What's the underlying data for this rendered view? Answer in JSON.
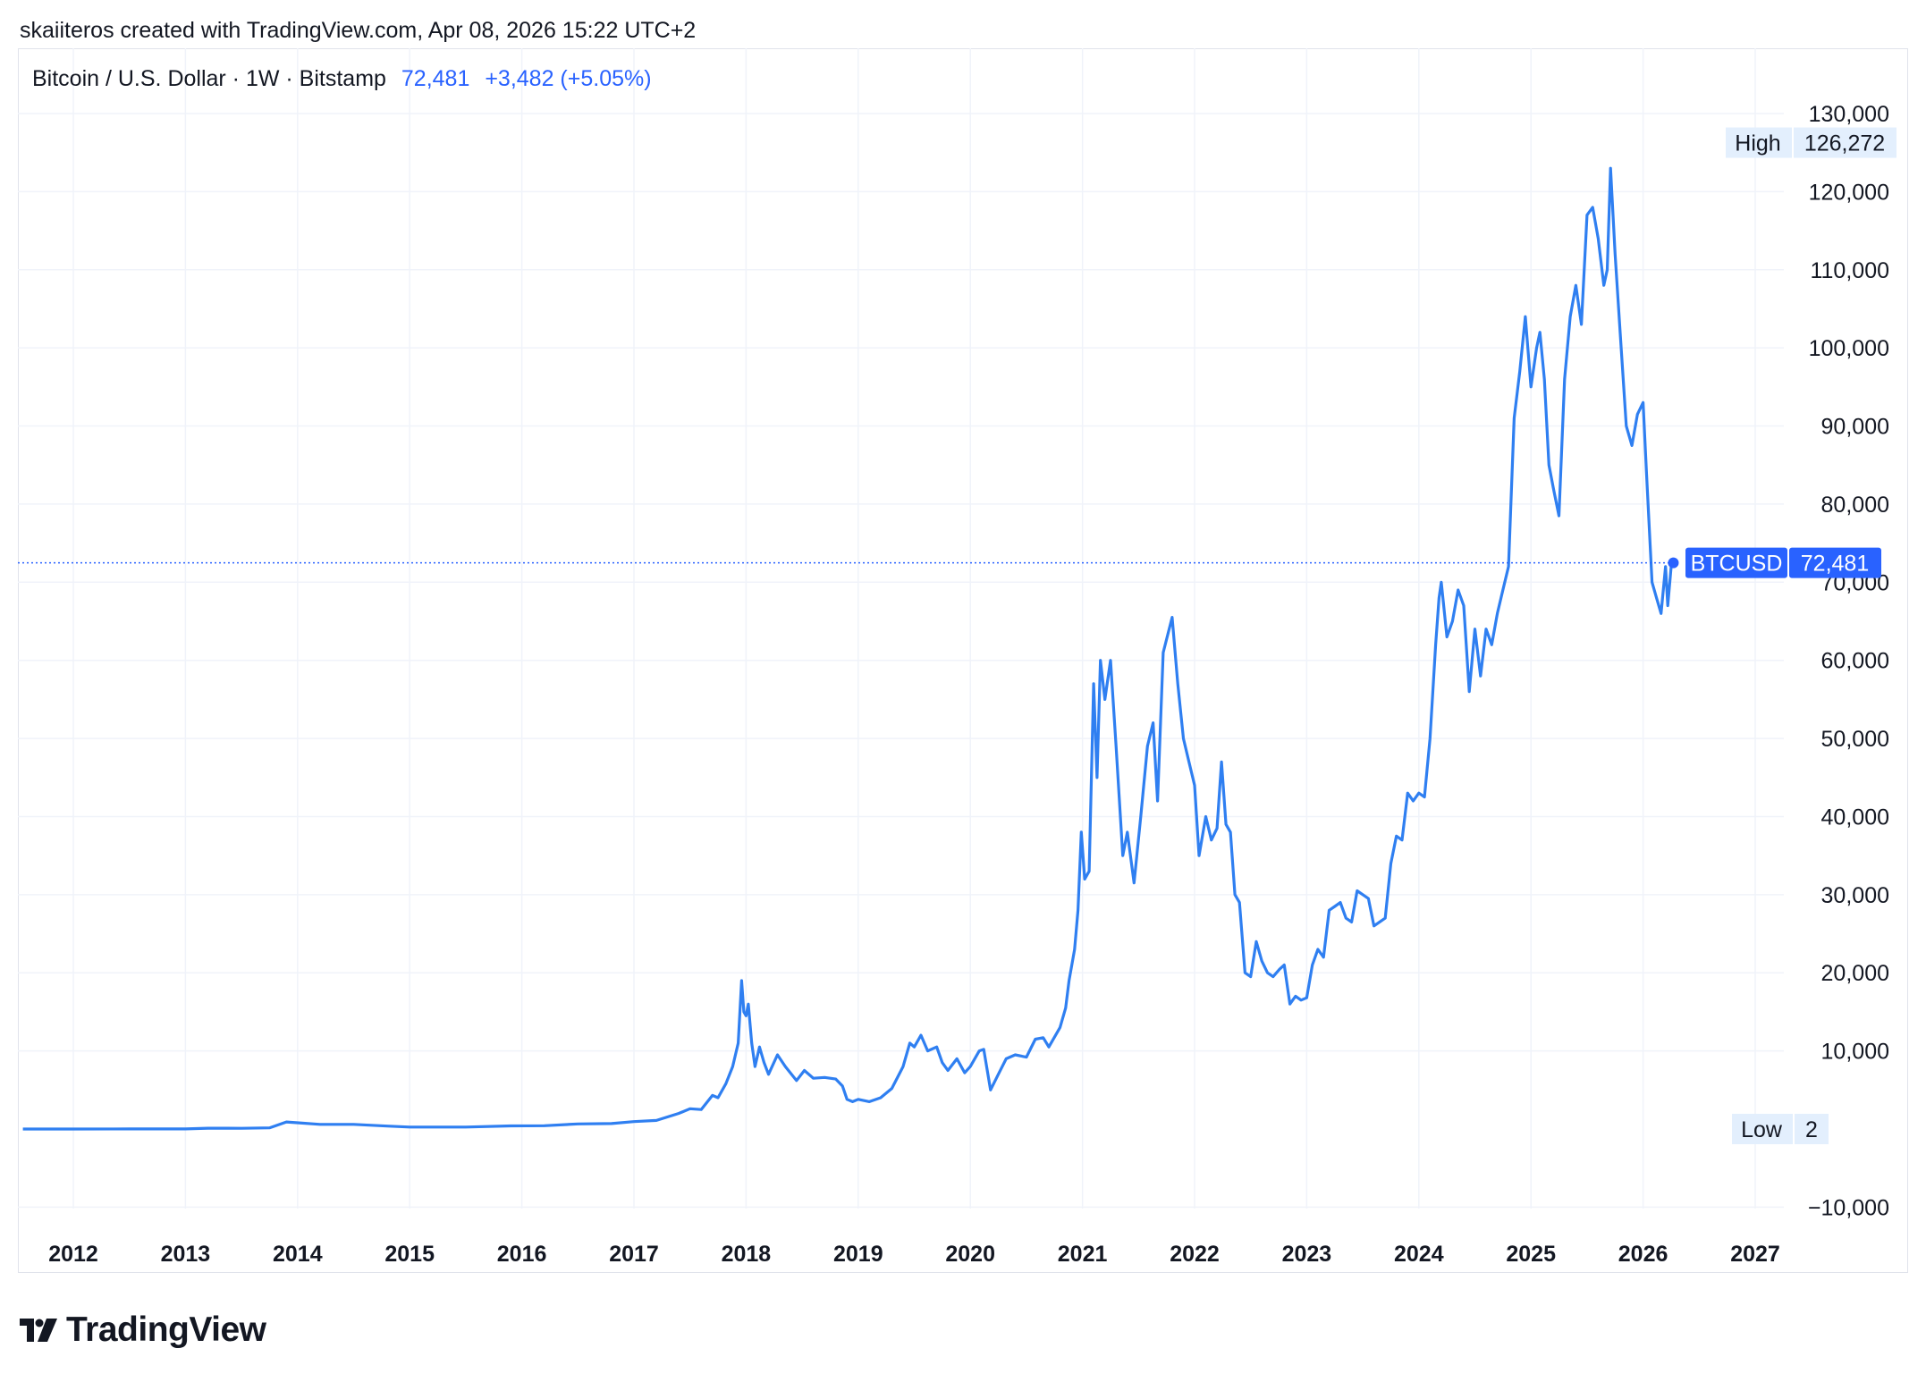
{
  "credit": "skaiiteros created with TradingView.com, Apr 08, 2026 15:22 UTC+2",
  "legend": {
    "symbol": "Bitcoin / U.S. Dollar · 1W · Bitstamp",
    "last": "72,481",
    "change": "+3,482 (+5.05%)"
  },
  "brand": {
    "name": "TradingView"
  },
  "colors": {
    "line": "#2f7ff1",
    "accent": "#2962ff",
    "grid": "#f0f3fa",
    "text": "#131722",
    "tag_bg": "#e3effd"
  },
  "chart_data": {
    "type": "line",
    "ylim": [
      -10000,
      130000
    ],
    "xlim": [
      2011.5,
      2027.4
    ],
    "x_ticks": [
      "2012",
      "2013",
      "2014",
      "2015",
      "2016",
      "2017",
      "2018",
      "2019",
      "2020",
      "2021",
      "2022",
      "2023",
      "2024",
      "2025",
      "2026",
      "2027"
    ],
    "y_ticks": [
      {
        "value": 130000,
        "label": "130,000"
      },
      {
        "value": 120000,
        "label": "120,000"
      },
      {
        "value": 110000,
        "label": "110,000"
      },
      {
        "value": 100000,
        "label": "100,000"
      },
      {
        "value": 90000,
        "label": "90,000"
      },
      {
        "value": 80000,
        "label": "80,000"
      },
      {
        "value": 70000,
        "label": "70,000"
      },
      {
        "value": 60000,
        "label": "60,000"
      },
      {
        "value": 50000,
        "label": "50,000"
      },
      {
        "value": 40000,
        "label": "40,000"
      },
      {
        "value": 30000,
        "label": "30,000"
      },
      {
        "value": 20000,
        "label": "20,000"
      },
      {
        "value": 10000,
        "label": "10,000"
      },
      {
        "value": -10000,
        "label": "−10,000"
      }
    ],
    "markers": {
      "high": {
        "label": "High",
        "value": 126272,
        "text": "126,272"
      },
      "low": {
        "label": "Low",
        "value": 2,
        "text": "2"
      },
      "last": {
        "label": "BTCUSD",
        "value": 72481,
        "text": "72,481"
      }
    },
    "series": [
      {
        "values": [
          [
            2011.55,
            5
          ],
          [
            2012.0,
            5
          ],
          [
            2012.5,
            8
          ],
          [
            2013.0,
            13
          ],
          [
            2013.2,
            100
          ],
          [
            2013.5,
            90
          ],
          [
            2013.75,
            150
          ],
          [
            2013.9,
            900
          ],
          [
            2014.0,
            800
          ],
          [
            2014.2,
            600
          ],
          [
            2014.5,
            600
          ],
          [
            2014.8,
            380
          ],
          [
            2015.0,
            250
          ],
          [
            2015.5,
            250
          ],
          [
            2015.9,
            400
          ],
          [
            2016.2,
            420
          ],
          [
            2016.5,
            650
          ],
          [
            2016.8,
            700
          ],
          [
            2017.0,
            950
          ],
          [
            2017.2,
            1100
          ],
          [
            2017.4,
            2000
          ],
          [
            2017.5,
            2600
          ],
          [
            2017.6,
            2500
          ],
          [
            2017.7,
            4300
          ],
          [
            2017.75,
            4000
          ],
          [
            2017.82,
            5800
          ],
          [
            2017.88,
            8000
          ],
          [
            2017.93,
            11000
          ],
          [
            2017.96,
            19000
          ],
          [
            2017.98,
            15000
          ],
          [
            2018.0,
            14500
          ],
          [
            2018.02,
            16000
          ],
          [
            2018.05,
            11000
          ],
          [
            2018.08,
            8000
          ],
          [
            2018.12,
            10500
          ],
          [
            2018.16,
            8500
          ],
          [
            2018.2,
            7000
          ],
          [
            2018.28,
            9500
          ],
          [
            2018.35,
            8000
          ],
          [
            2018.45,
            6200
          ],
          [
            2018.52,
            7500
          ],
          [
            2018.6,
            6500
          ],
          [
            2018.7,
            6600
          ],
          [
            2018.8,
            6400
          ],
          [
            2018.86,
            5500
          ],
          [
            2018.9,
            3800
          ],
          [
            2018.95,
            3500
          ],
          [
            2019.0,
            3800
          ],
          [
            2019.1,
            3500
          ],
          [
            2019.2,
            4000
          ],
          [
            2019.3,
            5200
          ],
          [
            2019.4,
            8000
          ],
          [
            2019.46,
            11000
          ],
          [
            2019.5,
            10500
          ],
          [
            2019.56,
            12000
          ],
          [
            2019.62,
            10000
          ],
          [
            2019.7,
            10500
          ],
          [
            2019.75,
            8500
          ],
          [
            2019.8,
            7500
          ],
          [
            2019.88,
            9000
          ],
          [
            2019.95,
            7200
          ],
          [
            2020.0,
            8000
          ],
          [
            2020.08,
            10000
          ],
          [
            2020.12,
            10200
          ],
          [
            2020.18,
            5000
          ],
          [
            2020.25,
            7000
          ],
          [
            2020.32,
            9000
          ],
          [
            2020.4,
            9500
          ],
          [
            2020.5,
            9200
          ],
          [
            2020.58,
            11500
          ],
          [
            2020.65,
            11700
          ],
          [
            2020.7,
            10500
          ],
          [
            2020.8,
            13000
          ],
          [
            2020.85,
            15500
          ],
          [
            2020.88,
            19000
          ],
          [
            2020.93,
            23000
          ],
          [
            2020.96,
            28000
          ],
          [
            2020.99,
            38000
          ],
          [
            2021.02,
            32000
          ],
          [
            2021.06,
            33000
          ],
          [
            2021.1,
            57000
          ],
          [
            2021.13,
            45000
          ],
          [
            2021.16,
            60000
          ],
          [
            2021.2,
            55000
          ],
          [
            2021.25,
            60000
          ],
          [
            2021.3,
            49000
          ],
          [
            2021.36,
            35000
          ],
          [
            2021.4,
            38000
          ],
          [
            2021.46,
            31500
          ],
          [
            2021.52,
            40000
          ],
          [
            2021.58,
            49000
          ],
          [
            2021.63,
            52000
          ],
          [
            2021.67,
            42000
          ],
          [
            2021.72,
            61000
          ],
          [
            2021.8,
            65500
          ],
          [
            2021.85,
            57000
          ],
          [
            2021.9,
            50000
          ],
          [
            2021.95,
            47000
          ],
          [
            2022.0,
            44000
          ],
          [
            2022.04,
            35000
          ],
          [
            2022.1,
            40000
          ],
          [
            2022.15,
            37000
          ],
          [
            2022.2,
            38500
          ],
          [
            2022.24,
            47000
          ],
          [
            2022.28,
            39000
          ],
          [
            2022.32,
            38000
          ],
          [
            2022.36,
            30000
          ],
          [
            2022.4,
            29000
          ],
          [
            2022.45,
            20000
          ],
          [
            2022.5,
            19500
          ],
          [
            2022.55,
            24000
          ],
          [
            2022.6,
            21500
          ],
          [
            2022.65,
            20000
          ],
          [
            2022.7,
            19500
          ],
          [
            2022.76,
            20500
          ],
          [
            2022.8,
            21000
          ],
          [
            2022.85,
            16000
          ],
          [
            2022.9,
            17000
          ],
          [
            2022.95,
            16500
          ],
          [
            2023.0,
            16800
          ],
          [
            2023.05,
            21000
          ],
          [
            2023.1,
            23000
          ],
          [
            2023.15,
            22000
          ],
          [
            2023.2,
            28000
          ],
          [
            2023.25,
            28500
          ],
          [
            2023.3,
            29000
          ],
          [
            2023.35,
            27000
          ],
          [
            2023.4,
            26500
          ],
          [
            2023.45,
            30500
          ],
          [
            2023.5,
            30000
          ],
          [
            2023.55,
            29500
          ],
          [
            2023.6,
            26000
          ],
          [
            2023.65,
            26500
          ],
          [
            2023.7,
            27000
          ],
          [
            2023.75,
            34000
          ],
          [
            2023.8,
            37500
          ],
          [
            2023.85,
            37000
          ],
          [
            2023.9,
            43000
          ],
          [
            2023.95,
            42000
          ],
          [
            2024.0,
            43000
          ],
          [
            2024.05,
            42500
          ],
          [
            2024.1,
            50000
          ],
          [
            2024.15,
            62000
          ],
          [
            2024.18,
            68000
          ],
          [
            2024.2,
            70000
          ],
          [
            2024.25,
            63000
          ],
          [
            2024.3,
            65000
          ],
          [
            2024.35,
            69000
          ],
          [
            2024.4,
            67000
          ],
          [
            2024.45,
            56000
          ],
          [
            2024.5,
            64000
          ],
          [
            2024.55,
            58000
          ],
          [
            2024.6,
            64000
          ],
          [
            2024.65,
            62000
          ],
          [
            2024.7,
            66000
          ],
          [
            2024.75,
            69000
          ],
          [
            2024.8,
            72000
          ],
          [
            2024.85,
            91000
          ],
          [
            2024.9,
            97000
          ],
          [
            2024.95,
            104000
          ],
          [
            2025.0,
            95000
          ],
          [
            2025.05,
            100000
          ],
          [
            2025.08,
            102000
          ],
          [
            2025.12,
            96000
          ],
          [
            2025.16,
            85000
          ],
          [
            2025.2,
            82000
          ],
          [
            2025.25,
            78500
          ],
          [
            2025.3,
            96000
          ],
          [
            2025.35,
            104000
          ],
          [
            2025.4,
            108000
          ],
          [
            2025.45,
            103000
          ],
          [
            2025.5,
            117000
          ],
          [
            2025.55,
            118000
          ],
          [
            2025.6,
            114000
          ],
          [
            2025.65,
            108000
          ],
          [
            2025.68,
            110000
          ],
          [
            2025.71,
            123000
          ],
          [
            2025.75,
            112000
          ],
          [
            2025.8,
            101000
          ],
          [
            2025.85,
            90000
          ],
          [
            2025.9,
            87500
          ],
          [
            2025.95,
            91500
          ],
          [
            2026.0,
            93000
          ],
          [
            2026.03,
            84000
          ],
          [
            2026.08,
            70000
          ],
          [
            2026.12,
            68000
          ],
          [
            2026.16,
            66000
          ],
          [
            2026.2,
            72000
          ],
          [
            2026.22,
            67000
          ],
          [
            2026.25,
            72000
          ],
          [
            2026.27,
            72481
          ]
        ]
      }
    ]
  }
}
